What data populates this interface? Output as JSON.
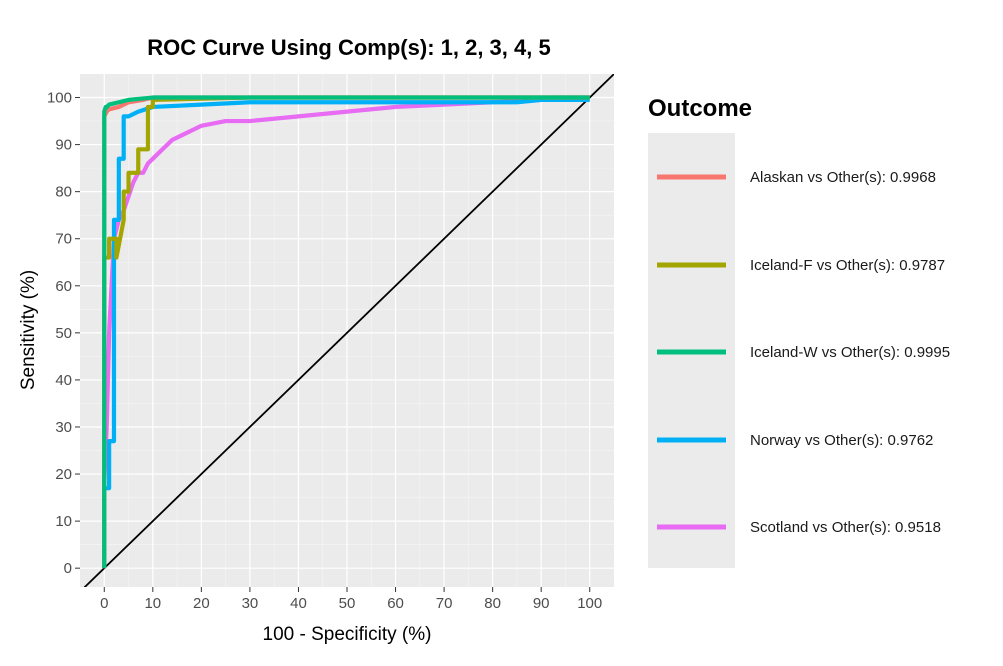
{
  "chart_data": {
    "type": "line",
    "title": "ROC Curve Using Comp(s): 1, 2, 3, 4, 5",
    "xlabel": "100 - Specificity (%)",
    "ylabel": "Sensitivity (%)",
    "xlim": [
      -5,
      105
    ],
    "ylim": [
      -4,
      105
    ],
    "xticks": [
      "0",
      "10",
      "20",
      "30",
      "40",
      "50",
      "60",
      "70",
      "80",
      "90",
      "100"
    ],
    "yticks": [
      "0",
      "10",
      "20",
      "30",
      "40",
      "50",
      "60",
      "70",
      "80",
      "90",
      "100"
    ],
    "grid": true,
    "background": "#ebebeb",
    "legend": {
      "title": "Outcome",
      "position": "right"
    },
    "reference_line": {
      "x": [
        -5,
        105
      ],
      "y": [
        -5,
        105
      ],
      "color": "#000000"
    },
    "series": [
      {
        "name": "Alaskan vs Other(s): 0.9968",
        "color": "#f8766d",
        "x": [
          0,
          0,
          0.5,
          1,
          3,
          5,
          8,
          10,
          30,
          60,
          100
        ],
        "y": [
          0,
          96,
          97,
          97.5,
          98,
          99,
          99.5,
          100,
          100,
          100,
          100
        ]
      },
      {
        "name": "Iceland-F vs Other(s): 0.9787",
        "color": "#a3a500",
        "x": [
          0,
          0,
          1,
          1,
          2,
          2.5,
          2.5,
          4,
          4,
          5,
          5,
          7,
          7,
          9,
          9,
          10,
          10,
          30,
          60,
          100
        ],
        "y": [
          0,
          66,
          66,
          70,
          70,
          70,
          66,
          74,
          80,
          80,
          84,
          84,
          89,
          89,
          98,
          98,
          99.5,
          100,
          100,
          100
        ]
      },
      {
        "name": "Iceland-W vs Other(s): 0.9995",
        "color": "#00bf7d",
        "x": [
          0,
          0,
          0,
          0.3,
          0.5,
          1,
          3,
          5,
          10,
          20,
          50,
          100
        ],
        "y": [
          0,
          28,
          97,
          98,
          98,
          98.5,
          99,
          99.5,
          100,
          100,
          100,
          100
        ]
      },
      {
        "name": "Norway vs Other(s): 0.9762",
        "color": "#00b0f6",
        "x": [
          0,
          0,
          1,
          1,
          2,
          2,
          3,
          3,
          4,
          4,
          5,
          7,
          10,
          20,
          30,
          50,
          70,
          80,
          85,
          90,
          100
        ],
        "y": [
          0,
          17,
          17,
          27,
          27,
          74,
          74,
          87,
          87,
          96,
          96,
          97,
          98,
          98.5,
          99,
          99,
          99,
          99,
          99,
          99.5,
          99.5
        ]
      },
      {
        "name": "Scotland vs Other(s): 0.9518",
        "color": "#e76bf3",
        "x": [
          0,
          0,
          0.5,
          1,
          1.5,
          2,
          3,
          4,
          5,
          6,
          7,
          8,
          9,
          10,
          11,
          12,
          13,
          14,
          16,
          18,
          20,
          25,
          30,
          40,
          50,
          60,
          70,
          80,
          90,
          92,
          100
        ],
        "y": [
          0,
          18,
          30,
          50,
          60,
          70,
          74,
          76,
          79,
          82,
          84,
          84,
          86,
          87,
          88,
          89,
          90,
          91,
          92,
          93,
          94,
          95,
          95,
          96,
          97,
          98,
          98.5,
          99,
          99.5,
          100,
          100
        ]
      }
    ]
  }
}
